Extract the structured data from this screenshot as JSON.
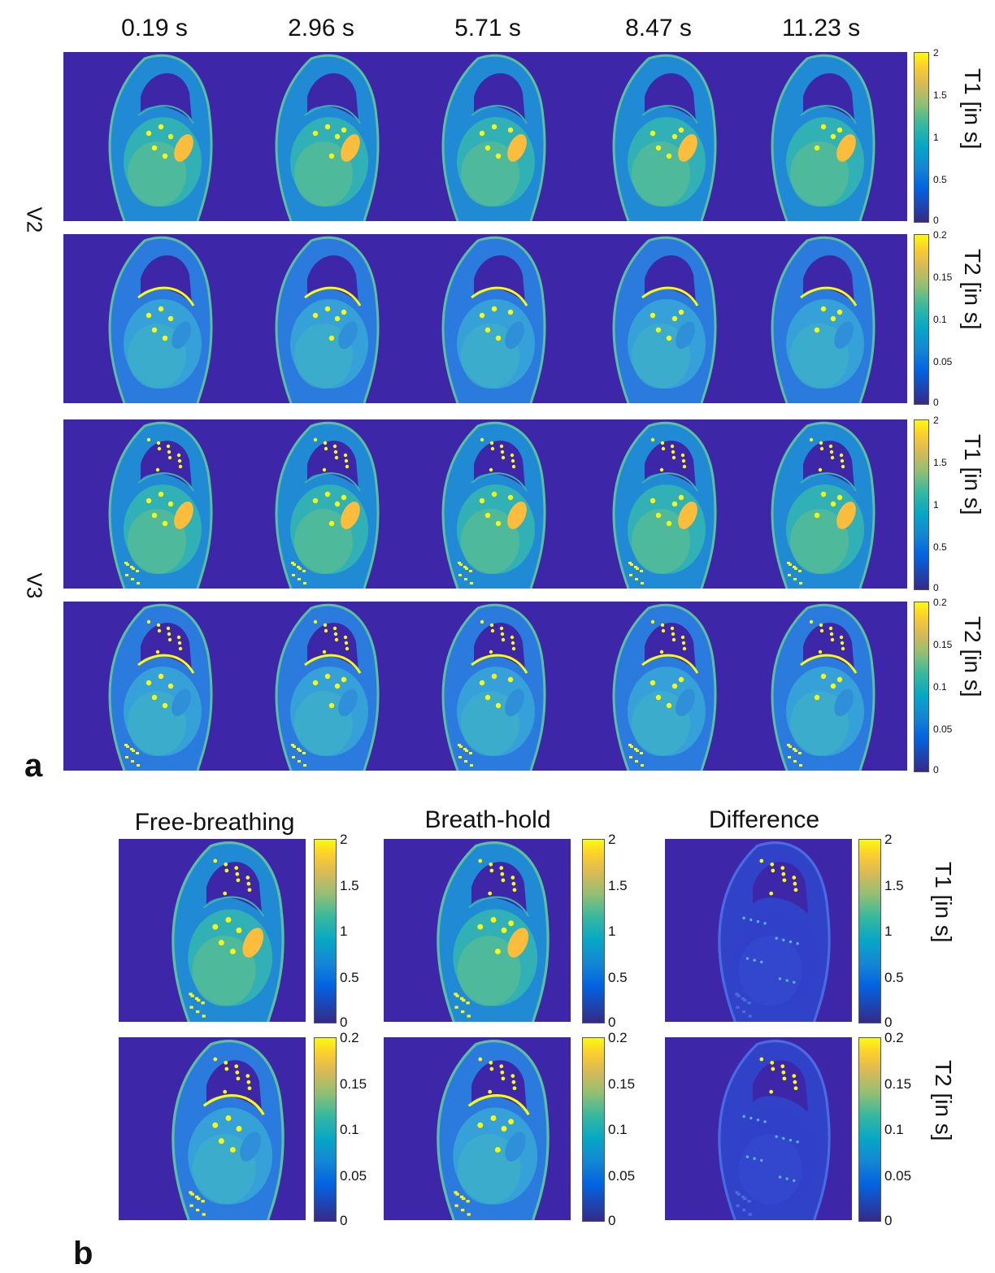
{
  "figure": {
    "panel_a": {
      "letter": "a",
      "time_labels": [
        "0.19 s",
        "2.96 s",
        "5.71 s",
        "8.47 s",
        "11.23 s"
      ],
      "volunteers": [
        "V2",
        "V3"
      ],
      "rows": [
        {
          "volunteer": "V2",
          "map": "T1",
          "label": "T1 [in s]",
          "ticks": [
            "2",
            "1.5",
            "1",
            "0.5",
            "0"
          ]
        },
        {
          "volunteer": "V2",
          "map": "T2",
          "label": "T2 [in s]",
          "ticks": [
            "0.2",
            "0.15",
            "0.1",
            "0.05",
            "0"
          ]
        },
        {
          "volunteer": "V3",
          "map": "T1",
          "label": "T1 [in s]",
          "ticks": [
            "2",
            "1.5",
            "1",
            "0.5",
            "0"
          ]
        },
        {
          "volunteer": "V3",
          "map": "T2",
          "label": "T2 [in s]",
          "ticks": [
            "0.2",
            "0.15",
            "0.1",
            "0.05",
            "0"
          ]
        }
      ]
    },
    "panel_b": {
      "letter": "b",
      "columns": [
        "Free-breathing",
        "Breath-hold",
        "Difference"
      ],
      "rows": [
        {
          "map": "T1",
          "label": "T1 [in s]",
          "ticks": [
            "2",
            "1.5",
            "1",
            "0.5",
            "0"
          ]
        },
        {
          "map": "T2",
          "label": "T2 [in s]",
          "ticks": [
            "0.2",
            "0.15",
            "0.1",
            "0.05",
            "0"
          ]
        }
      ]
    },
    "colormap": "parula",
    "colors": {
      "background": "#3d26a8",
      "low": "#352a87",
      "mid": "#11b4c4",
      "high": "#f9fb0e",
      "accent_orange": "#fdbd3c"
    }
  }
}
